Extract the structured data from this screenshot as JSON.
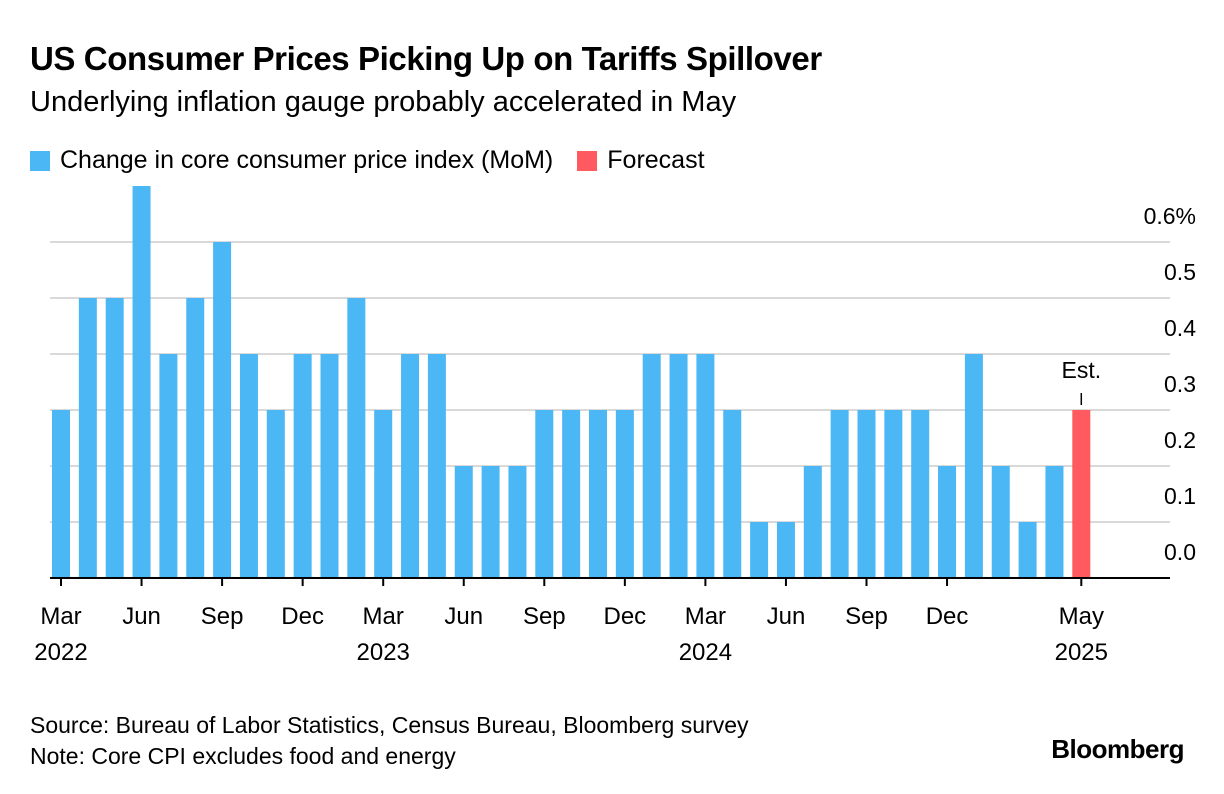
{
  "title": "US Consumer Prices Picking Up on Tariffs Spillover",
  "subtitle": "Underlying inflation gauge probably accelerated in May",
  "legend": [
    {
      "label": "Change in core consumer price index (MoM)",
      "color": "#4cb7f5"
    },
    {
      "label": "Forecast",
      "color": "#ff5a5f"
    }
  ],
  "source": "Source: Bureau of Labor Statistics, Census Bureau, Bloomberg survey",
  "note": "Note: Core CPI excludes food and energy",
  "brand": "Bloomberg",
  "chart_data": {
    "type": "bar",
    "categories": [
      "Mar 2022",
      "Apr 2022",
      "May 2022",
      "Jun 2022",
      "Jul 2022",
      "Aug 2022",
      "Sep 2022",
      "Oct 2022",
      "Nov 2022",
      "Dec 2022",
      "Jan 2023",
      "Feb 2023",
      "Mar 2023",
      "Apr 2023",
      "May 2023",
      "Jun 2023",
      "Jul 2023",
      "Aug 2023",
      "Sep 2023",
      "Oct 2023",
      "Nov 2023",
      "Dec 2023",
      "Jan 2024",
      "Feb 2024",
      "Mar 2024",
      "Apr 2024",
      "May 2024",
      "Jun 2024",
      "Jul 2024",
      "Aug 2024",
      "Sep 2024",
      "Oct 2024",
      "Nov 2024",
      "Dec 2024",
      "Jan 2025",
      "Feb 2025",
      "Mar 2025",
      "Apr 2025",
      "May 2025"
    ],
    "series": [
      {
        "name": "Change in core consumer price index (MoM)",
        "values": [
          0.3,
          0.5,
          0.5,
          0.7,
          0.4,
          0.5,
          0.6,
          0.4,
          0.3,
          0.4,
          0.4,
          0.5,
          0.3,
          0.4,
          0.4,
          0.2,
          0.2,
          0.2,
          0.3,
          0.3,
          0.3,
          0.3,
          0.4,
          0.4,
          0.4,
          0.3,
          0.1,
          0.1,
          0.2,
          0.3,
          0.3,
          0.3,
          0.3,
          0.2,
          0.4,
          0.2,
          0.1,
          0.2,
          null
        ]
      },
      {
        "name": "Forecast",
        "values": [
          null,
          null,
          null,
          null,
          null,
          null,
          null,
          null,
          null,
          null,
          null,
          null,
          null,
          null,
          null,
          null,
          null,
          null,
          null,
          null,
          null,
          null,
          null,
          null,
          null,
          null,
          null,
          null,
          null,
          null,
          null,
          null,
          null,
          null,
          null,
          null,
          null,
          null,
          0.3
        ]
      }
    ],
    "colors": {
      "actual": "#4cb7f5",
      "forecast": "#ff5a5f",
      "grid": "#d9d9d9",
      "axis": "#000000"
    },
    "ylim": [
      0,
      0.7
    ],
    "yticks": [
      {
        "value": 0.0,
        "label": "0.0"
      },
      {
        "value": 0.1,
        "label": "0.1"
      },
      {
        "value": 0.2,
        "label": "0.2"
      },
      {
        "value": 0.3,
        "label": "0.3"
      },
      {
        "value": 0.4,
        "label": "0.4"
      },
      {
        "value": 0.5,
        "label": "0.5"
      },
      {
        "value": 0.6,
        "label": "0.6%"
      }
    ],
    "xticks": [
      {
        "index": 0,
        "label": "Mar",
        "year": "2022"
      },
      {
        "index": 3,
        "label": "Jun"
      },
      {
        "index": 6,
        "label": "Sep"
      },
      {
        "index": 9,
        "label": "Dec"
      },
      {
        "index": 12,
        "label": "Mar",
        "year": "2023"
      },
      {
        "index": 15,
        "label": "Jun"
      },
      {
        "index": 18,
        "label": "Sep"
      },
      {
        "index": 21,
        "label": "Dec"
      },
      {
        "index": 24,
        "label": "Mar",
        "year": "2024"
      },
      {
        "index": 27,
        "label": "Jun"
      },
      {
        "index": 30,
        "label": "Sep"
      },
      {
        "index": 33,
        "label": "Dec"
      },
      {
        "index": 38,
        "label": "May",
        "year": "2025"
      }
    ],
    "annotation": {
      "index": 38,
      "text": "Est."
    },
    "grid": true,
    "yaxis_position": "right"
  }
}
